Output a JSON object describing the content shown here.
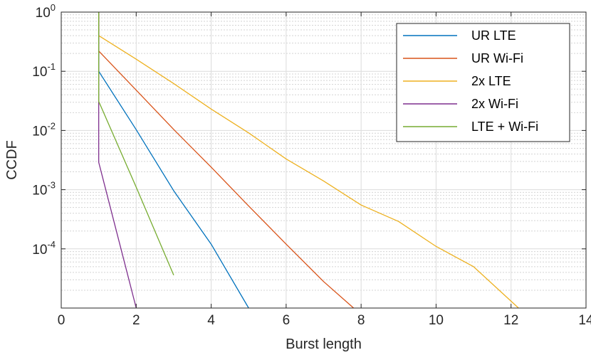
{
  "chart_data": {
    "type": "line",
    "title": "",
    "xlabel": "Burst length",
    "ylabel": "CCDF",
    "xlim": [
      0,
      14
    ],
    "ylim": [
      1e-05,
      1
    ],
    "yscale": "log",
    "grid": true,
    "minor_grid": true,
    "legend_position": "top-right",
    "x_ticks": [
      0,
      2,
      4,
      6,
      8,
      10,
      12,
      14
    ],
    "x_tick_labels": [
      "0",
      "2",
      "4",
      "6",
      "8",
      "10",
      "12",
      "14"
    ],
    "y_ticks": [
      {
        "value": 1,
        "base": "10",
        "exp": "0"
      },
      {
        "value": 0.1,
        "base": "10",
        "exp": "-1"
      },
      {
        "value": 0.01,
        "base": "10",
        "exp": "-2"
      },
      {
        "value": 0.001,
        "base": "10",
        "exp": "-3"
      },
      {
        "value": 0.0001,
        "base": "10",
        "exp": "-4"
      }
    ],
    "series": [
      {
        "name": "UR LTE",
        "color": "#0072BD",
        "x": [
          1,
          1,
          2,
          3,
          4,
          5
        ],
        "y": [
          1,
          0.1,
          0.0103,
          0.00096,
          0.00012,
          1e-05
        ]
      },
      {
        "name": "UR Wi-Fi",
        "color": "#D95319",
        "x": [
          1,
          1,
          2,
          3,
          4,
          5,
          6,
          7,
          7.8
        ],
        "y": [
          1,
          0.22,
          0.048,
          0.0104,
          0.0024,
          0.00053,
          0.00012,
          2.8e-05,
          1e-05
        ]
      },
      {
        "name": "2x LTE",
        "color": "#EDB120",
        "x": [
          1,
          1,
          2,
          3,
          4,
          5,
          6,
          7,
          8,
          9,
          10,
          11,
          12.2
        ],
        "y": [
          1,
          0.4,
          0.16,
          0.062,
          0.023,
          0.0091,
          0.0033,
          0.0014,
          0.00055,
          0.00029,
          0.00011,
          5e-05,
          1e-05
        ]
      },
      {
        "name": "2x Wi-Fi",
        "color": "#7E2F8E",
        "x": [
          1,
          1,
          1,
          2
        ],
        "y": [
          1,
          0.016,
          0.0029,
          1e-05
        ]
      },
      {
        "name": "LTE + Wi-Fi",
        "color": "#77AC30",
        "x": [
          1,
          1,
          2,
          3
        ],
        "y": [
          1,
          0.031,
          0.0011,
          3.6e-05
        ]
      }
    ]
  }
}
